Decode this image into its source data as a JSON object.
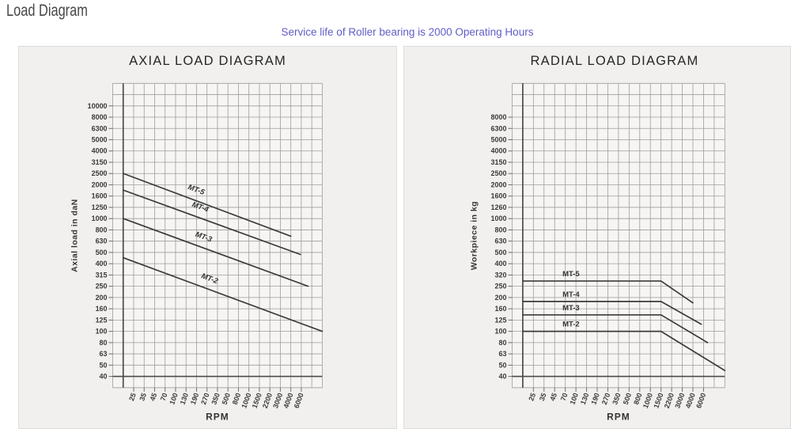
{
  "page": {
    "title": "Load Diagram",
    "subtitle": "Service life of Roller bearing is 2000 Operating Hours",
    "subtitle_color": "#625cc7"
  },
  "chart_data": [
    {
      "id": "axial",
      "type": "line",
      "title": "AXIAL LOAD DIAGRAM",
      "xlabel": "RPM",
      "ylabel": "Axial load in daN",
      "x_scale": "log",
      "y_scale": "log",
      "grid": true,
      "x_ticks": [
        25,
        35,
        45,
        70,
        100,
        130,
        190,
        270,
        350,
        500,
        800,
        1000,
        1500,
        2200,
        3000,
        4000,
        6000
      ],
      "y_ticks": [
        10000,
        8000,
        6300,
        5000,
        4000,
        3150,
        2500,
        2000,
        1600,
        1250,
        1000,
        800,
        630,
        500,
        400,
        315,
        250,
        200,
        160,
        125,
        100,
        80,
        63,
        50,
        40
      ],
      "point_format": "[rpm, load]",
      "series_label_style": "along-line",
      "series": [
        {
          "name": "MT-5",
          "points": [
            [
              18,
              2500
            ],
            [
              4000,
              700
            ]
          ]
        },
        {
          "name": "MT-4",
          "points": [
            [
              18,
              1800
            ],
            [
              5800,
              480
            ]
          ]
        },
        {
          "name": "MT-3",
          "points": [
            [
              18,
              1000
            ],
            [
              7800,
              250
            ]
          ]
        },
        {
          "name": "MT-2",
          "points": [
            [
              18,
              450
            ],
            [
              13500,
              100
            ]
          ]
        }
      ],
      "line_color": "#3b3b3b"
    },
    {
      "id": "radial",
      "type": "line",
      "title": "RADIAL LOAD DIAGRAM",
      "xlabel": "RPM",
      "ylabel": "Workpiece in kg",
      "x_scale": "log",
      "y_scale": "log",
      "grid": true,
      "x_ticks": [
        25,
        35,
        45,
        70,
        100,
        130,
        190,
        270,
        350,
        500,
        800,
        1000,
        1500,
        2200,
        3000,
        4000,
        6000
      ],
      "y_ticks": [
        8000,
        6300,
        5000,
        4000,
        3150,
        2500,
        2000,
        1600,
        1260,
        1000,
        800,
        630,
        500,
        400,
        320,
        250,
        200,
        160,
        125,
        100,
        80,
        63,
        50,
        40
      ],
      "point_format": "[rpm, load]",
      "series_label_style": "horizontal",
      "series": [
        {
          "name": "MT-5",
          "points": [
            [
              18,
              280
            ],
            [
              1500,
              280
            ],
            [
              4000,
              180
            ]
          ]
        },
        {
          "name": "MT-4",
          "points": [
            [
              18,
              185
            ],
            [
              1500,
              185
            ],
            [
              5500,
              115
            ]
          ]
        },
        {
          "name": "MT-3",
          "points": [
            [
              18,
              140
            ],
            [
              1500,
              140
            ],
            [
              7000,
              80
            ]
          ]
        },
        {
          "name": "MT-2",
          "points": [
            [
              18,
              100
            ],
            [
              1500,
              100
            ],
            [
              13500,
              45
            ]
          ]
        }
      ],
      "line_color": "#3b3b3b"
    }
  ]
}
